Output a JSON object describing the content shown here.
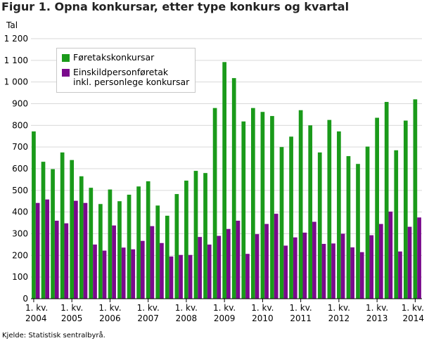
{
  "title": "Figur 1. Opna konkursar, etter type konkurs og kvartal",
  "source": "Kjelde: Statistisk sentralbyrå.",
  "chart_data": {
    "type": "bar",
    "ylabel": "Tal",
    "ylim": [
      0,
      1200
    ],
    "yticks": [
      {
        "value": 0,
        "label": "0"
      },
      {
        "value": 100,
        "label": "100"
      },
      {
        "value": 200,
        "label": "200"
      },
      {
        "value": 300,
        "label": "300"
      },
      {
        "value": 400,
        "label": "400"
      },
      {
        "value": 500,
        "label": "500"
      },
      {
        "value": 600,
        "label": "600"
      },
      {
        "value": 700,
        "label": "700"
      },
      {
        "value": 800,
        "label": "800"
      },
      {
        "value": 900,
        "label": "900"
      },
      {
        "value": 1000,
        "label": "1 000"
      },
      {
        "value": 1100,
        "label": "1 100"
      },
      {
        "value": 1200,
        "label": "1 200"
      }
    ],
    "grid": true,
    "legend_position": "top-left",
    "categories": [
      "2004K1",
      "2004K2",
      "2004K3",
      "2004K4",
      "2005K1",
      "2005K2",
      "2005K3",
      "2005K4",
      "2006K1",
      "2006K2",
      "2006K3",
      "2006K4",
      "2007K1",
      "2007K2",
      "2007K3",
      "2007K4",
      "2008K1",
      "2008K2",
      "2008K3",
      "2008K4",
      "2009K1",
      "2009K2",
      "2009K3",
      "2009K4",
      "2010K1",
      "2010K2",
      "2010K3",
      "2010K4",
      "2011K1",
      "2011K2",
      "2011K3",
      "2011K4",
      "2012K1",
      "2012K2",
      "2012K3",
      "2012K4",
      "2013K1",
      "2013K2",
      "2013K3",
      "2013K4",
      "2014K1"
    ],
    "xtick_labels": [
      {
        "index": 0,
        "line1": "1. kv.",
        "line2": "2004"
      },
      {
        "index": 4,
        "line1": "1. kv.",
        "line2": "2005"
      },
      {
        "index": 8,
        "line1": "1. kv.",
        "line2": "2006"
      },
      {
        "index": 12,
        "line1": "1. kv.",
        "line2": "2007"
      },
      {
        "index": 16,
        "line1": "1. kv.",
        "line2": "2008"
      },
      {
        "index": 20,
        "line1": "1. kv.",
        "line2": "2009"
      },
      {
        "index": 24,
        "line1": "1. kv.",
        "line2": "2010"
      },
      {
        "index": 28,
        "line1": "1. kv.",
        "line2": "2011"
      },
      {
        "index": 32,
        "line1": "1. kv.",
        "line2": "2012"
      },
      {
        "index": 36,
        "line1": "1. kv.",
        "line2": "2013"
      },
      {
        "index": 40,
        "line1": "1. kv.",
        "line2": "2014"
      }
    ],
    "series": [
      {
        "name": "Føretakskonkursar",
        "color": "#1a9a1a",
        "values": [
          772,
          632,
          598,
          675,
          640,
          565,
          512,
          437,
          504,
          450,
          480,
          518,
          542,
          430,
          383,
          483,
          545,
          590,
          580,
          880,
          1092,
          1018,
          818,
          880,
          862,
          843,
          700,
          748,
          870,
          800,
          675,
          825,
          772,
          658,
          622,
          702,
          835,
          908,
          685,
          822,
          920
        ]
      },
      {
        "name": "Einskildpersonføretak inkl. personlege konkursar",
        "color": "#7a0a8c",
        "values": [
          442,
          458,
          360,
          348,
          452,
          442,
          250,
          222,
          338,
          236,
          228,
          267,
          335,
          257,
          195,
          202,
          202,
          285,
          250,
          290,
          322,
          360,
          207,
          298,
          345,
          392,
          245,
          283,
          305,
          355,
          253,
          255,
          300,
          237,
          215,
          293,
          345,
          402,
          218,
          332,
          375
        ]
      }
    ]
  },
  "legend": {
    "item1": "Føretakskonkursar",
    "item2_line1": "Einskildpersonføretak",
    "item2_line2": "inkl. personlege konkursar"
  }
}
